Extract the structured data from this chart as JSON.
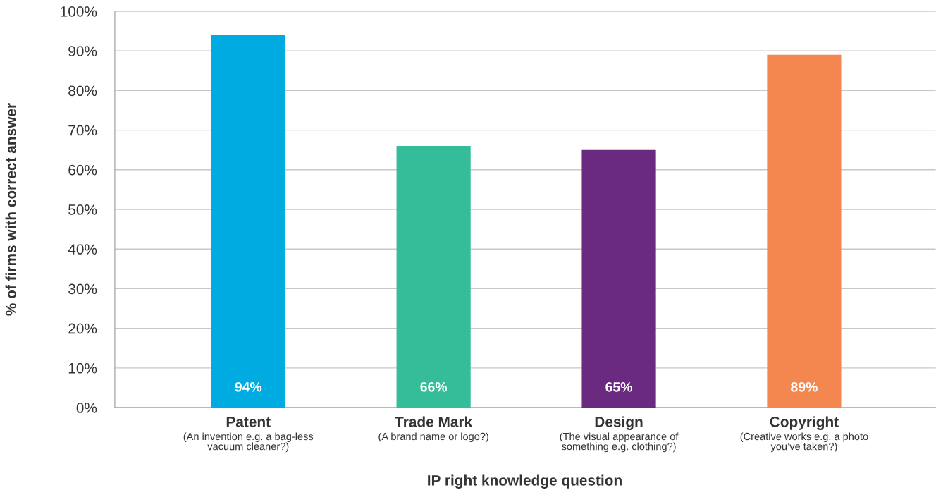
{
  "chart_data": {
    "type": "bar",
    "xlabel": "IP right knowledge question",
    "ylabel": "% of firms with correct answer",
    "categories": [
      "Patent\n(An invention e.g. a bag-less\nvacuum cleaner?)",
      "Trade Mark\n(A brand name or logo?)",
      "Design\n(The visual appearance of\nsomething e.g. clothing?)",
      "Copyright\n(Creative works e.g. a photo\nyou’ve taken?)"
    ],
    "values": [
      94,
      66,
      65,
      89
    ],
    "colors": [
      "#00abe1",
      "#35bd9a",
      "#6a2a7f",
      "#f4874f"
    ],
    "value_labels": [
      "94%",
      "66%",
      "65%",
      "89%"
    ],
    "ylim": [
      0,
      100
    ],
    "yticks": [
      {
        "value": 0,
        "label": "0%"
      },
      {
        "value": 10,
        "label": "10%"
      },
      {
        "value": 20,
        "label": "20%"
      },
      {
        "value": 30,
        "label": "30%"
      },
      {
        "value": 40,
        "label": "40%"
      },
      {
        "value": 50,
        "label": "50%"
      },
      {
        "value": 60,
        "label": "60%"
      },
      {
        "value": 70,
        "label": "70%"
      },
      {
        "value": 80,
        "label": "80%"
      },
      {
        "value": 90,
        "label": "90%"
      },
      {
        "value": 100,
        "label": "100%"
      }
    ],
    "grid": "y"
  }
}
